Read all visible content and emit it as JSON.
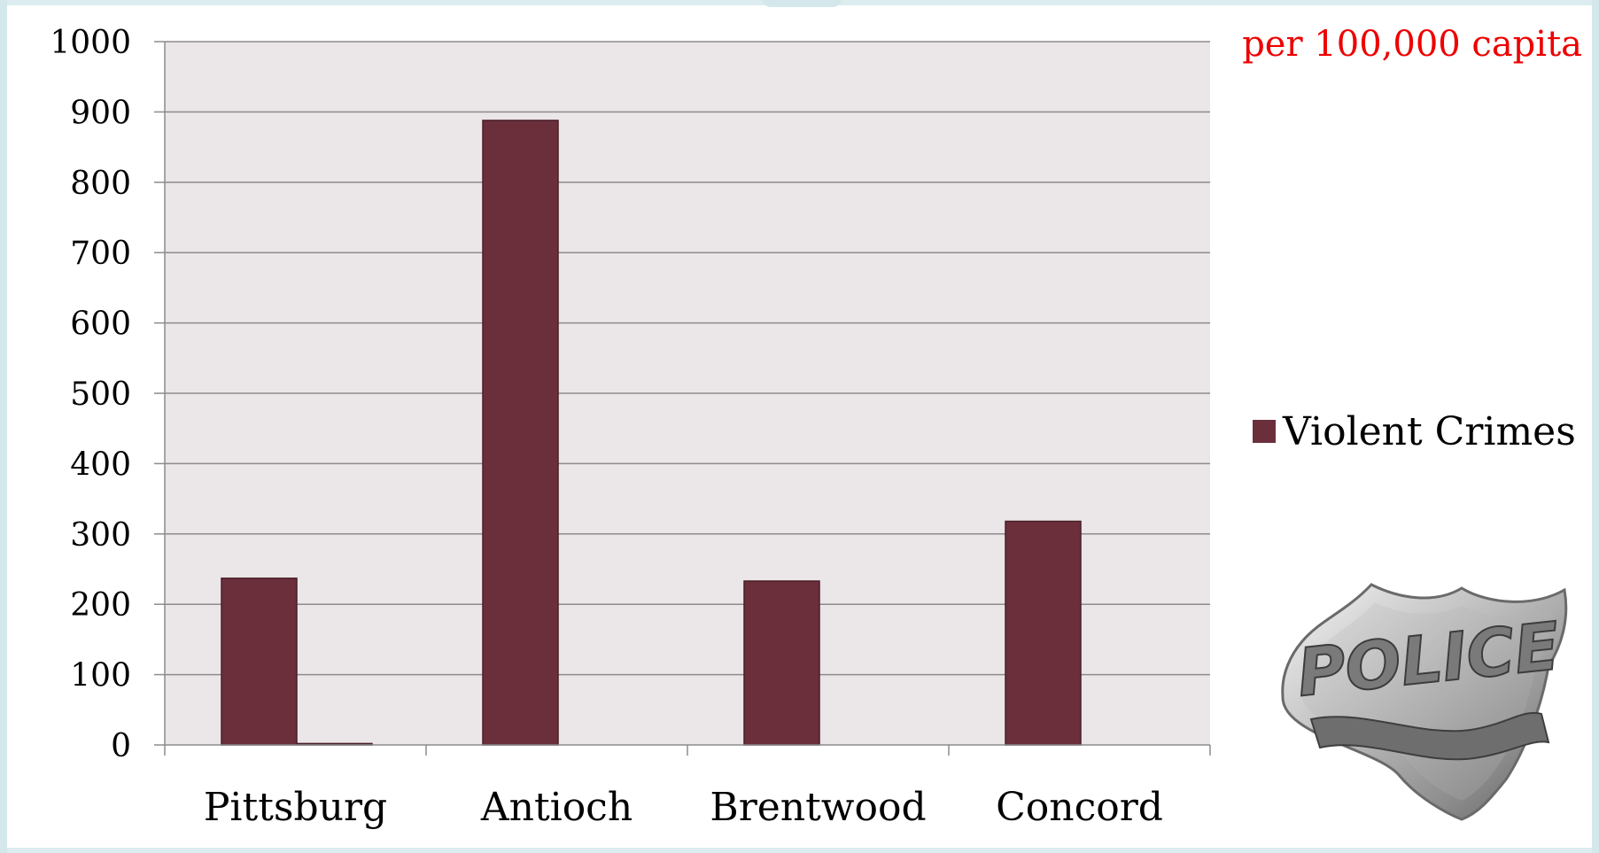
{
  "note": {
    "text": "per 100,000 capita",
    "color": "#ee0000"
  },
  "badge": {
    "icon": "police-badge-icon",
    "text": "POLICE"
  },
  "chart_data": {
    "type": "bar",
    "categories": [
      "Pittsburg",
      "Antioch",
      "Brentwood",
      "Concord"
    ],
    "series": [
      {
        "name": "Violent Crimes",
        "values": [
          237,
          888,
          233,
          318
        ],
        "color": "#6b2f3c"
      },
      {
        "name": "",
        "values": [
          2,
          0,
          0,
          0
        ],
        "color": "#6b2f3c"
      }
    ],
    "yticks": [
      0,
      100,
      200,
      300,
      400,
      500,
      600,
      700,
      800,
      900,
      1000
    ],
    "ylim": [
      0,
      1000
    ],
    "grid": true,
    "legend_position": "right",
    "plot_background": "#ebe6e8"
  }
}
